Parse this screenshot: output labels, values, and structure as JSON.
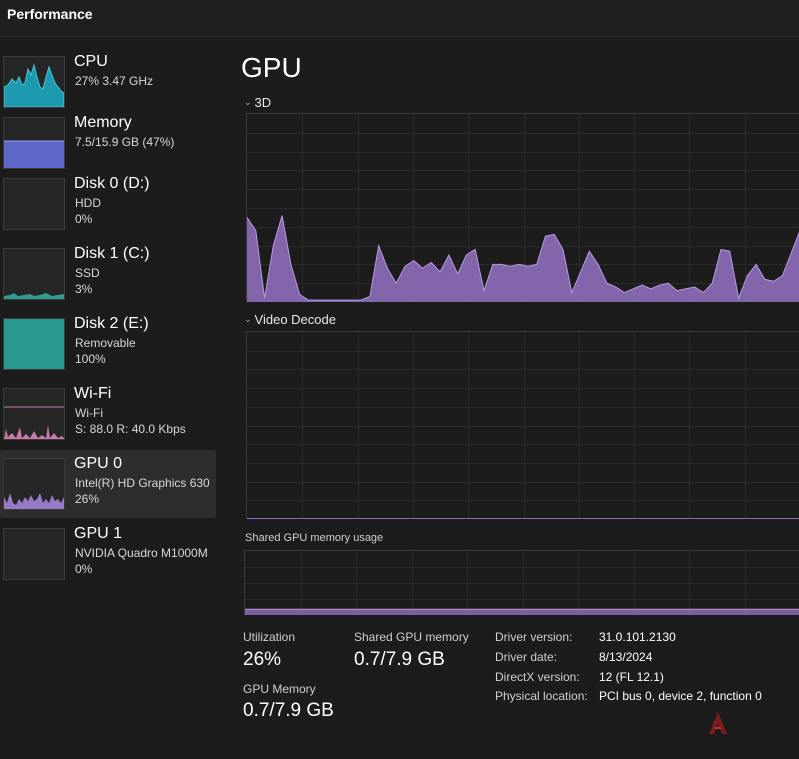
{
  "window": {
    "title": "Performance"
  },
  "sidebar": {
    "items": [
      {
        "name": "CPU",
        "sub": "27%  3.47 GHz",
        "sub2": "",
        "color": "#1e9ab0",
        "selected": false
      },
      {
        "name": "Memory",
        "sub": "7.5/15.9 GB (47%)",
        "sub2": "",
        "color": "#6a72d8",
        "selected": false
      },
      {
        "name": "Disk 0 (D:)",
        "sub": "HDD",
        "sub2": "0%",
        "color": "#2e9c90",
        "selected": false
      },
      {
        "name": "Disk 1 (C:)",
        "sub": "SSD",
        "sub2": "3%",
        "color": "#2e9c90",
        "selected": false
      },
      {
        "name": "Disk 2 (E:)",
        "sub": "Removable",
        "sub2": "100%",
        "color": "#2a9a92",
        "selected": false
      },
      {
        "name": "Wi-Fi",
        "sub": "Wi-Fi",
        "sub2": "S: 88.0  R: 40.0 Kbps",
        "color": "#d17ab0",
        "selected": false
      },
      {
        "name": "GPU 0",
        "sub": "Intel(R) HD Graphics 630",
        "sub2": "26%",
        "color": "#9a78c8",
        "selected": true
      },
      {
        "name": "GPU 1",
        "sub": "NVIDIA Quadro M1000M",
        "sub2": "0%",
        "color": "#9a78c8",
        "selected": false
      }
    ]
  },
  "main": {
    "title": "GPU",
    "graphs": {
      "engine1": "3D",
      "engine2": "Video Decode",
      "shared_memory": "Shared GPU memory usage"
    },
    "stats": {
      "utilization_label": "Utilization",
      "utilization_value": "26%",
      "shared_label": "Shared GPU memory",
      "shared_value": "0.7/7.9 GB",
      "gpu_mem_label": "GPU Memory",
      "gpu_mem_value": "0.7/7.9 GB"
    },
    "info": {
      "driver_version_label": "Driver version:",
      "driver_version": "31.0.101.2130",
      "driver_date_label": "Driver date:",
      "driver_date": "8/13/2024",
      "directx_label": "DirectX version:",
      "directx": "12 (FL 12.1)",
      "location_label": "Physical location:",
      "location": "PCI bus 0, device 2, function 0"
    }
  },
  "chart_data": {
    "type": "area",
    "title": "3D",
    "ylim": [
      0,
      100
    ],
    "grid": true,
    "series": [
      {
        "color": "#8c6bb8",
        "values": [
          45,
          38,
          2,
          30,
          46,
          20,
          4,
          1,
          1,
          1,
          1,
          1,
          1,
          1,
          3,
          30,
          18,
          10,
          19,
          22,
          18,
          21,
          16,
          25,
          15,
          25,
          28,
          6,
          20,
          20,
          19,
          20,
          19,
          20,
          35,
          36,
          28,
          5,
          16,
          27,
          20,
          10,
          8,
          5,
          7,
          9,
          7,
          9,
          10,
          6,
          7,
          8,
          5,
          10,
          28,
          27,
          2,
          14,
          20,
          12,
          11,
          14,
          26,
          38
        ]
      }
    ],
    "shared_memory_pct": 9,
    "video_decode_pct": 0
  },
  "colors": {
    "accent": "#8c6bb8",
    "background": "#1c1c1c",
    "grid": "#2b2b2b"
  }
}
